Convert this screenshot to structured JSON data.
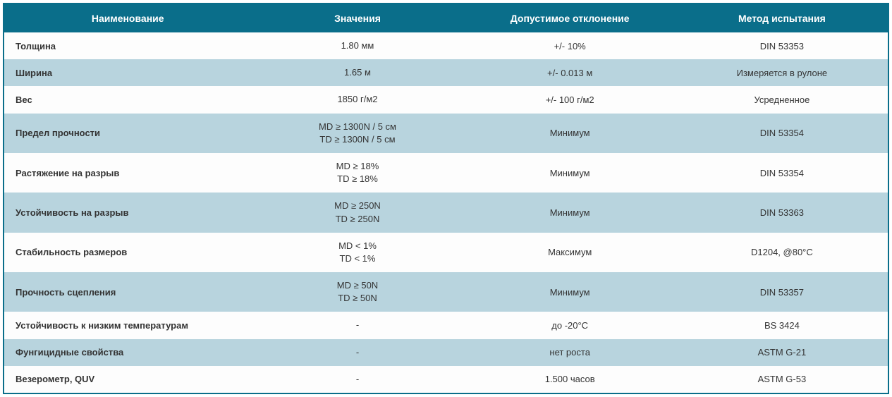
{
  "table": {
    "type": "table",
    "header_bg_color": "#0a6e8a",
    "header_text_color": "#ffffff",
    "row_light_color": "#fdfdfd",
    "row_dark_color": "#b8d4de",
    "text_color": "#333333",
    "border_color": "#0a6e8a",
    "font_family": "Arial, Helvetica, sans-serif",
    "header_fontsize": 14,
    "cell_fontsize": 13,
    "columns": [
      {
        "label": "Наименование",
        "align": "left",
        "width": "28%"
      },
      {
        "label": "Значения",
        "align": "center",
        "width": "24%"
      },
      {
        "label": "Допустимое отклонение",
        "align": "center",
        "width": "24%"
      },
      {
        "label": "Метод испытания",
        "align": "center",
        "width": "24%"
      }
    ],
    "rows": [
      {
        "name": "Толщина",
        "value": "1.80 мм",
        "tolerance": "+/- 10%",
        "method": "DIN 53353",
        "shade": "light"
      },
      {
        "name": "Ширина",
        "value": "1.65 м",
        "tolerance": "+/- 0.013 м",
        "method": "Измеряется в рулоне",
        "shade": "dark"
      },
      {
        "name": "Вес",
        "value": "1850 г/м2",
        "tolerance": "+/- 100 г/м2",
        "method": "Усредненное",
        "shade": "light"
      },
      {
        "name": "Предел прочности",
        "value": "MD ≥ 1300N / 5 см\nTD ≥ 1300N / 5 см",
        "tolerance": "Минимум",
        "method": "DIN 53354",
        "shade": "dark"
      },
      {
        "name": "Растяжение на разрыв",
        "value": "MD ≥ 18%\nTD ≥ 18%",
        "tolerance": "Минимум",
        "method": "DIN 53354",
        "shade": "light"
      },
      {
        "name": "Устойчивость на разрыв",
        "value": "MD ≥ 250N\nTD ≥ 250N",
        "tolerance": "Минимум",
        "method": "DIN 53363",
        "shade": "dark"
      },
      {
        "name": "Стабильность размеров",
        "value": "MD < 1%\nTD < 1%",
        "tolerance": "Максимум",
        "method": "D1204, @80°C",
        "shade": "light"
      },
      {
        "name": "Прочность сцепления",
        "value": "MD ≥ 50N\nTD ≥ 50N",
        "tolerance": "Минимум",
        "method": "DIN 53357",
        "shade": "dark"
      },
      {
        "name": "Устойчивость к низким температурам",
        "value": "-",
        "tolerance": "до -20°C",
        "method": "BS 3424",
        "shade": "light"
      },
      {
        "name": "Фунгицидные свойства",
        "value": "-",
        "tolerance": "нет роста",
        "method": "ASTM G-21",
        "shade": "dark"
      },
      {
        "name": "Везерометр, QUV",
        "value": "-",
        "tolerance": "1.500 часов",
        "method": "ASTM G-53",
        "shade": "light"
      }
    ]
  }
}
